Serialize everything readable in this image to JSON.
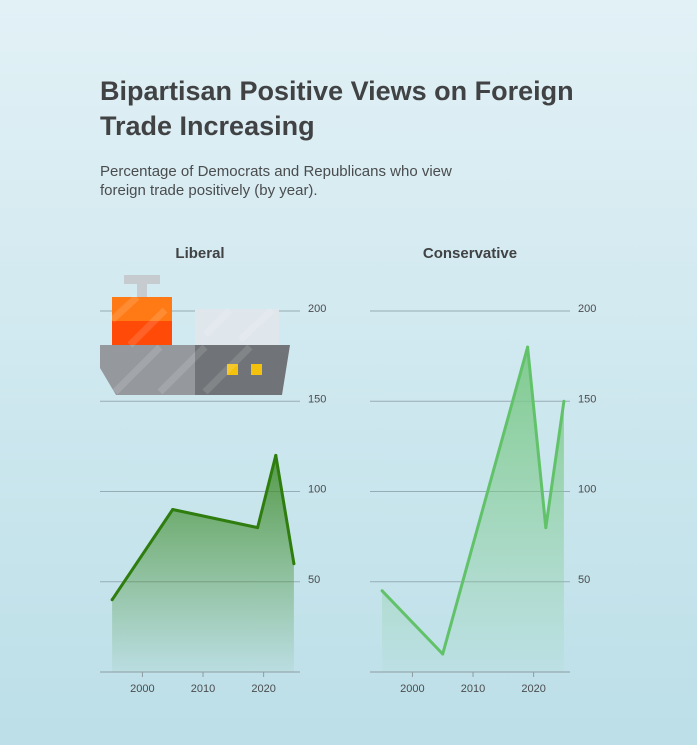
{
  "title": "Bipartisan Positive Views on Foreign Trade Increasing",
  "subtitle": "Percentage of Democrats and Republicans who view foreign trade positively (by year).",
  "colors": {
    "liberal_line": "#2f7d0f",
    "liberal_fill": "#4a9a3a",
    "conservative_line": "#62c26a",
    "conservative_fill": "#7cc98a",
    "grid": "#97acb3",
    "axis_text": "#4a4c4e"
  },
  "icons": [
    "cargo-ship-icon"
  ],
  "chart_data": [
    {
      "type": "area",
      "title": "Liberal",
      "x": [
        1995,
        2005,
        2019,
        2022,
        2025
      ],
      "y": [
        40,
        90,
        80,
        120,
        60
      ],
      "xlim": [
        1993,
        2026
      ],
      "ylim": [
        0,
        200
      ],
      "xticks": [
        "2000",
        "2010",
        "2020"
      ],
      "yticks": [
        "50",
        "100",
        "150",
        "200"
      ],
      "grid": true
    },
    {
      "type": "area",
      "title": "Conservative",
      "x": [
        1995,
        2005,
        2019,
        2022,
        2025
      ],
      "y": [
        45,
        10,
        180,
        80,
        150
      ],
      "xlim": [
        1993,
        2026
      ],
      "ylim": [
        0,
        200
      ],
      "xticks": [
        "2000",
        "2010",
        "2020"
      ],
      "yticks": [
        "50",
        "100",
        "150",
        "200"
      ],
      "grid": true
    }
  ]
}
